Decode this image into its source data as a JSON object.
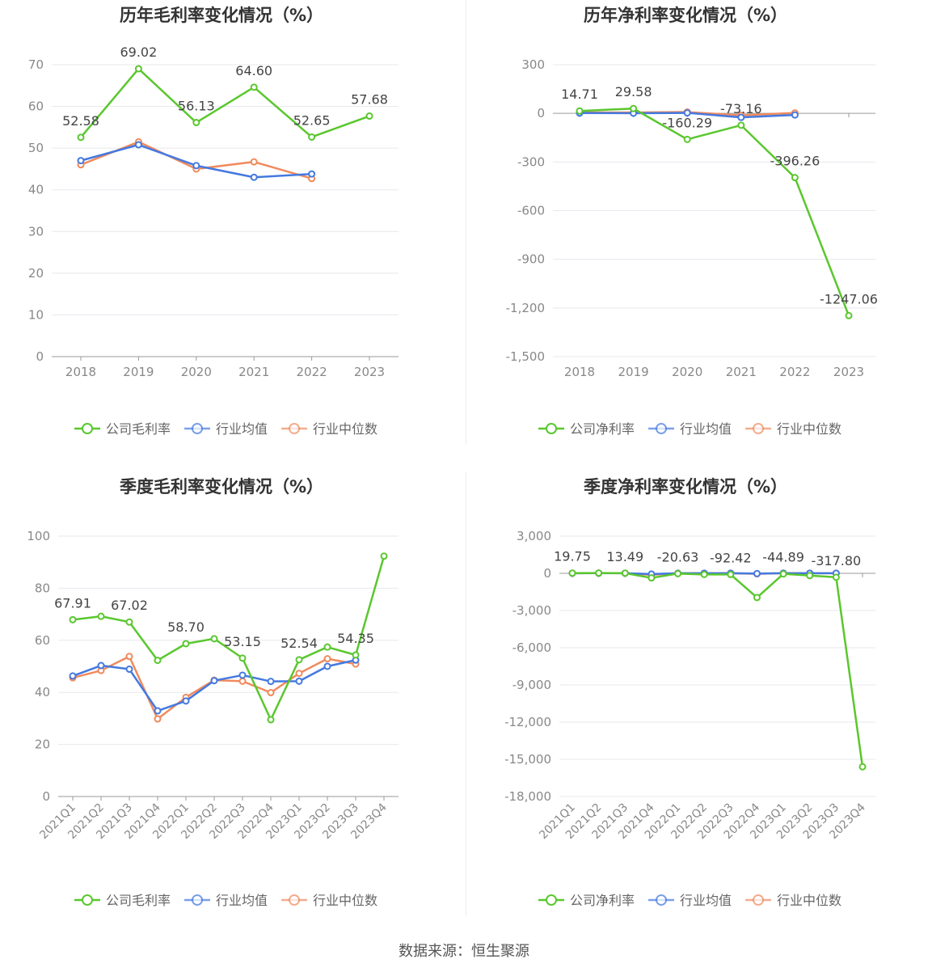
{
  "source_text": "数据来源：恒生聚源",
  "chart_data": [
    {
      "type": "line",
      "title": "历年毛利率变化情况（%）",
      "categories": [
        "2018",
        "2019",
        "2020",
        "2021",
        "2022",
        "2023"
      ],
      "yticks": [
        "0",
        "10",
        "20",
        "30",
        "40",
        "50",
        "60",
        "70"
      ],
      "ylim": [
        0,
        70
      ],
      "series": [
        {
          "name": "公司毛利率",
          "color": "#5ac72e",
          "values": [
            52.58,
            69.02,
            56.13,
            64.6,
            52.65,
            57.68
          ]
        },
        {
          "name": "行业均值",
          "color": "#4479e0",
          "values": [
            47.0,
            50.8,
            45.8,
            43.0,
            43.8,
            null
          ]
        },
        {
          "name": "行业中位数",
          "color": "#f08a5d",
          "values": [
            46.0,
            51.5,
            45.0,
            46.7,
            42.7,
            null
          ]
        }
      ],
      "data_labels": [
        "52.58",
        "69.02",
        "56.13",
        "64.60",
        "52.65",
        "57.68"
      ],
      "legend_position": "bottom",
      "grid": true
    },
    {
      "type": "line",
      "title": "历年净利率变化情况（%）",
      "categories": [
        "2018",
        "2019",
        "2020",
        "2021",
        "2022",
        "2023"
      ],
      "yticks": [
        "300",
        "0",
        "-300",
        "-600",
        "-900",
        "-1,200",
        "-1,500"
      ],
      "ylim": [
        -1500,
        300
      ],
      "series": [
        {
          "name": "公司净利率",
          "color": "#5ac72e",
          "values": [
            14.71,
            29.58,
            -160.29,
            -73.16,
            -396.26,
            -1247.06
          ]
        },
        {
          "name": "行业均值",
          "color": "#4479e0",
          "values": [
            2,
            1,
            3,
            -25,
            -10,
            null
          ]
        },
        {
          "name": "行业中位数",
          "color": "#f08a5d",
          "values": [
            6,
            5,
            8,
            -12,
            3,
            null
          ]
        }
      ],
      "data_labels": [
        "14.71",
        "29.58",
        "-160.29",
        "-73.16",
        "-396.26",
        "-1247.06"
      ],
      "legend_position": "bottom",
      "grid": true
    },
    {
      "type": "line",
      "title": "季度毛利率变化情况（%）",
      "categories": [
        "2021Q1",
        "2021Q2",
        "2021Q3",
        "2021Q4",
        "2022Q1",
        "2022Q2",
        "2022Q3",
        "2022Q4",
        "2023Q1",
        "2023Q2",
        "2023Q3",
        "2023Q4"
      ],
      "yticks": [
        "0",
        "20",
        "40",
        "60",
        "80",
        "100"
      ],
      "ylim": [
        0,
        100
      ],
      "series": [
        {
          "name": "公司毛利率",
          "color": "#5ac72e",
          "values": [
            67.91,
            69.2,
            67.02,
            52.3,
            58.7,
            60.6,
            53.15,
            29.5,
            52.54,
            57.4,
            54.35,
            92.3
          ]
        },
        {
          "name": "行业均值",
          "color": "#4479e0",
          "values": [
            46.3,
            50.3,
            48.9,
            32.9,
            36.7,
            44.5,
            46.6,
            44.2,
            44.3,
            50.0,
            52.4,
            null
          ]
        },
        {
          "name": "行业中位数",
          "color": "#f08a5d",
          "values": [
            45.6,
            48.4,
            53.8,
            29.8,
            38.1,
            44.7,
            44.3,
            39.9,
            47.3,
            52.9,
            50.9,
            null
          ]
        }
      ],
      "data_labels": [
        "67.91",
        "",
        "67.02",
        "",
        "58.70",
        "",
        "53.15",
        "",
        "52.54",
        "",
        "54.35",
        ""
      ],
      "legend_position": "bottom",
      "grid": true
    },
    {
      "type": "line",
      "title": "季度净利率变化情况（%）",
      "categories": [
        "2021Q1",
        "2021Q2",
        "2021Q3",
        "2021Q4",
        "2022Q1",
        "2022Q2",
        "2022Q3",
        "2022Q4",
        "2023Q1",
        "2023Q2",
        "2023Q3",
        "2023Q4"
      ],
      "yticks": [
        "3,000",
        "0",
        "-3,000",
        "-6,000",
        "-9,000",
        "-12,000",
        "-15,000",
        "-18,000"
      ],
      "ylim": [
        -18000,
        3000
      ],
      "series": [
        {
          "name": "公司净利率",
          "color": "#5ac72e",
          "values": [
            19.75,
            25,
            13.49,
            -370,
            -20.63,
            -90,
            -92.42,
            -1950,
            -44.89,
            -180,
            -317.8,
            -15600
          ]
        },
        {
          "name": "行业均值",
          "color": "#4479e0",
          "values": [
            10,
            15,
            10,
            -60,
            5,
            10,
            8,
            -20,
            12,
            10,
            8,
            null
          ]
        },
        {
          "name": "行业中位数",
          "color": "#f08a5d",
          "values": [
            12,
            14,
            12,
            -120,
            6,
            8,
            10,
            -40,
            15,
            12,
            10,
            null
          ]
        }
      ],
      "data_labels": [
        "19.75",
        "",
        "13.49",
        "",
        "-20.63",
        "",
        "-92.42",
        "",
        "-44.89",
        "",
        "-317.80",
        ""
      ],
      "legend_position": "bottom",
      "grid": true
    }
  ]
}
